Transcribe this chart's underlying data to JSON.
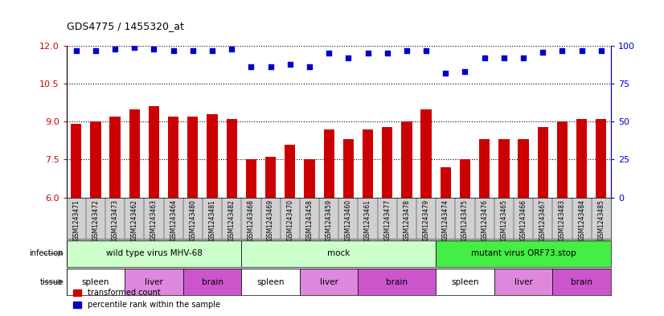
{
  "title": "GDS4775 / 1455320_at",
  "samples": [
    "GSM1243471",
    "GSM1243472",
    "GSM1243473",
    "GSM1243462",
    "GSM1243463",
    "GSM1243464",
    "GSM1243480",
    "GSM1243481",
    "GSM1243482",
    "GSM1243468",
    "GSM1243469",
    "GSM1243470",
    "GSM1243458",
    "GSM1243459",
    "GSM1243460",
    "GSM1243461",
    "GSM1243477",
    "GSM1243478",
    "GSM1243479",
    "GSM1243474",
    "GSM1243475",
    "GSM1243476",
    "GSM1243465",
    "GSM1243466",
    "GSM1243467",
    "GSM1243483",
    "GSM1243484",
    "GSM1243485"
  ],
  "transformed_count": [
    8.9,
    9.0,
    9.2,
    9.5,
    9.6,
    9.2,
    9.2,
    9.3,
    9.1,
    7.5,
    7.6,
    8.1,
    7.5,
    8.7,
    8.3,
    8.7,
    8.8,
    9.0,
    9.5,
    7.2,
    7.5,
    8.3,
    8.3,
    8.3,
    8.8,
    9.0,
    9.1,
    9.1
  ],
  "percentile_rank": [
    97,
    97,
    98,
    99,
    98,
    97,
    97,
    97,
    98,
    86,
    86,
    88,
    86,
    95,
    92,
    95,
    95,
    97,
    97,
    82,
    83,
    92,
    92,
    92,
    96,
    97,
    97,
    97
  ],
  "ylim_left": [
    6,
    12
  ],
  "ylim_right": [
    0,
    100
  ],
  "yticks_left": [
    6,
    7.5,
    9,
    10.5,
    12
  ],
  "yticks_right": [
    0,
    25,
    50,
    75,
    100
  ],
  "bar_color": "#cc0000",
  "dot_color": "#0000cc",
  "infection_groups": [
    {
      "label": "wild type virus MHV-68",
      "start": 0,
      "end": 9,
      "color": "#ccffcc"
    },
    {
      "label": "mock",
      "start": 9,
      "end": 19,
      "color": "#ccffcc"
    },
    {
      "label": "mutant virus ORF73.stop",
      "start": 19,
      "end": 28,
      "color": "#44ee44"
    }
  ],
  "tissue_groups": [
    {
      "label": "spleen",
      "start": 0,
      "end": 3,
      "color": "#dd88dd"
    },
    {
      "label": "liver",
      "start": 3,
      "end": 6,
      "color": "#dd88dd"
    },
    {
      "label": "brain",
      "start": 6,
      "end": 9,
      "color": "#dd88dd"
    },
    {
      "label": "spleen",
      "start": 9,
      "end": 12,
      "color": "#dd88dd"
    },
    {
      "label": "liver",
      "start": 12,
      "end": 15,
      "color": "#dd88dd"
    },
    {
      "label": "brain",
      "start": 15,
      "end": 19,
      "color": "#dd88dd"
    },
    {
      "label": "spleen",
      "start": 19,
      "end": 22,
      "color": "#dd88dd"
    },
    {
      "label": "liver",
      "start": 22,
      "end": 25,
      "color": "#dd88dd"
    },
    {
      "label": "brain",
      "start": 25,
      "end": 28,
      "color": "#dd88dd"
    }
  ]
}
